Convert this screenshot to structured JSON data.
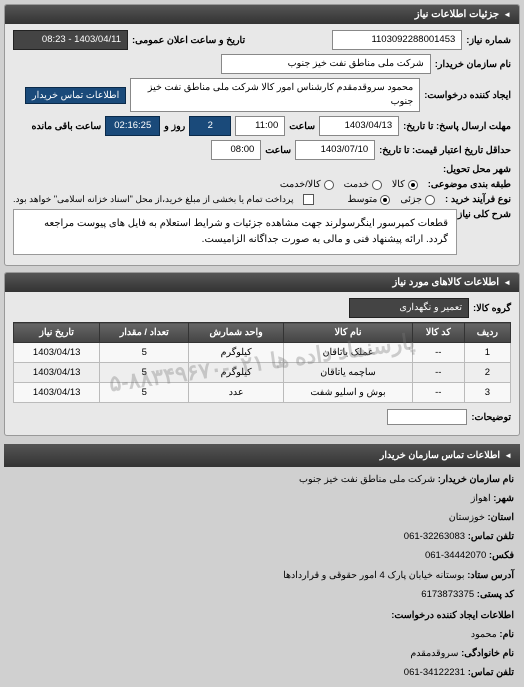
{
  "panel1": {
    "title": "جزئیات اطلاعات نیاز",
    "need_no_lbl": "شماره نیاز:",
    "need_no": "1103092288001453",
    "announce_lbl": "تاریخ و ساعت اعلان عمومی:",
    "announce_val": "1403/04/11 - 08:23",
    "buyer_lbl": "نام سازمان خریدار:",
    "buyer_val": "شرکت ملی مناطق نفت خیز جنوب",
    "requester_lbl": "ایجاد کننده درخواست:",
    "requester_val": "محمود سروقدمقدم کارشناس امور کالا شرکت ملی مناطق نفت خیز جنوب",
    "contact_link": "اطلاعات تماس خریدار",
    "deadline_lbl": "مهلت ارسال پاسخ: تا تاریخ:",
    "deadline_date": "1403/04/13",
    "time_lbl": "ساعت",
    "deadline_time": "11:00",
    "days_remain": "2",
    "days_lbl": "روز و",
    "time_remain": "02:16:25",
    "time_remain_lbl": "ساعت باقی مانده",
    "valid_lbl": "حداقل تاریخ اعتبار قیمت: تا تاریخ:",
    "valid_date": "1403/07/10",
    "valid_time": "08:00",
    "delivery_lbl": "شهر محل تحویل:",
    "category_lbl": "طبقه بندی موضوعی:",
    "cat_goods": "کالا",
    "cat_service": "خدمت",
    "cat_both": "کالا/خدمت",
    "process_lbl": "نوع فرآیند خرید :",
    "proc_small": "جزئی",
    "proc_medium": "متوسط",
    "pay_note": "پرداخت تمام یا بخشی از مبلغ خرید،از محل \"اسناد خزانه اسلامی\" خواهد بود.",
    "desc_lbl": "شرح کلی نیاز:",
    "desc_text": "قطعات کمپرسور اینگرسولرند جهت مشاهده جزئیات و شرایط استعلام به فایل های پیوست مراجعه گردد. ارائه پیشنهاد فنی و مالی به صورت جداگانه الزامیست."
  },
  "panel2": {
    "title": "اطلاعات کالاهای مورد نیاز",
    "group_lbl": "گروه کالا:",
    "group_val": "تعمیر و نگهداری",
    "columns": [
      "ردیف",
      "کد کالا",
      "نام کالا",
      "واحد شمارش",
      "تعداد / مقدار",
      "تاریخ نیاز"
    ],
    "rows": [
      [
        "1",
        "--",
        "عملک یاتاقان",
        "کیلوگرم",
        "5",
        "1403/04/13"
      ],
      [
        "2",
        "--",
        "ساچمه یاتاقان",
        "کیلوگرم",
        "5",
        "1403/04/13"
      ],
      [
        "3",
        "--",
        "بوش و اسلیو شفت",
        "عدد",
        "5",
        "1403/04/13"
      ]
    ],
    "explain_lbl": "توضیحات:",
    "watermark": "پارسنماد داده ها   ۰۲۱-۸۸۳۴۹۶۷۰-۵"
  },
  "footer": {
    "contact_header": "اطلاعات تماس سازمان خریدار",
    "org_lbl": "نام سازمان خریدار:",
    "org_val": "شرکت ملی مناطق نفت خیز جنوب",
    "city_lbl": "شهر:",
    "city_val": "اهواز",
    "province_lbl": "استان:",
    "province_val": "خوزستان",
    "tel_lbl": "تلفن تماس:",
    "tel_val": "32263083-061",
    "fax_lbl": "فکس:",
    "fax_val": "34442070-061",
    "addr_lbl": "آدرس ستاد:",
    "addr_val": "بوستانه خیابان پارک 4 امور حقوقی و قراردادها",
    "postal_lbl": "کد پستی:",
    "postal_val": "6173873375",
    "req_header": "اطلاعات ایجاد کننده درخواست:",
    "name_lbl": "نام:",
    "name_val": "محمود",
    "family_lbl": "نام خانوادگی:",
    "family_val": "سروقدمقدم",
    "tel2_lbl": "تلفن تماس:",
    "tel2_val": "34122231-061"
  }
}
